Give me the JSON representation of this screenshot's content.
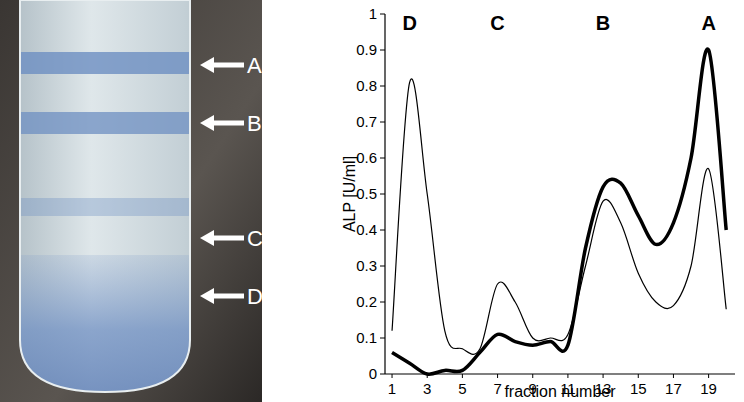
{
  "photo": {
    "labels": [
      "A",
      "B",
      "C",
      "D"
    ]
  },
  "chart_data": {
    "type": "line",
    "x_label": "fraction number",
    "y_label": "ALP [U/ml]",
    "annotations": [
      {
        "text": "D",
        "x": 2
      },
      {
        "text": "C",
        "x": 7
      },
      {
        "text": "B",
        "x": 13
      },
      {
        "text": "A",
        "x": 19
      }
    ],
    "x": [
      1,
      2,
      3,
      4,
      5,
      6,
      7,
      8,
      9,
      10,
      11,
      12,
      13,
      14,
      15,
      16,
      17,
      18,
      19,
      20
    ],
    "series": [
      {
        "color": "#000000",
        "values": [
          0.06,
          0.03,
          0.0,
          0.01,
          0.01,
          0.06,
          0.11,
          0.09,
          0.08,
          0.09,
          0.08,
          0.35,
          0.52,
          0.53,
          0.44,
          0.36,
          0.42,
          0.6,
          0.9,
          0.4
        ]
      },
      {
        "color": "#000000",
        "values": [
          0.12,
          0.81,
          0.5,
          0.12,
          0.07,
          0.07,
          0.25,
          0.2,
          0.1,
          0.1,
          0.11,
          0.3,
          0.48,
          0.42,
          0.28,
          0.2,
          0.19,
          0.3,
          0.57,
          0.18
        ]
      }
    ],
    "xlim": [
      0.6,
      20.5
    ],
    "ylim": [
      0,
      1
    ],
    "xticks": [
      1,
      3,
      5,
      7,
      9,
      11,
      13,
      15,
      17,
      19
    ],
    "yticks": [
      0,
      0.1,
      0.2,
      0.3,
      0.4,
      0.5,
      0.6,
      0.7,
      0.8,
      0.9,
      1
    ],
    "grid": false
  }
}
